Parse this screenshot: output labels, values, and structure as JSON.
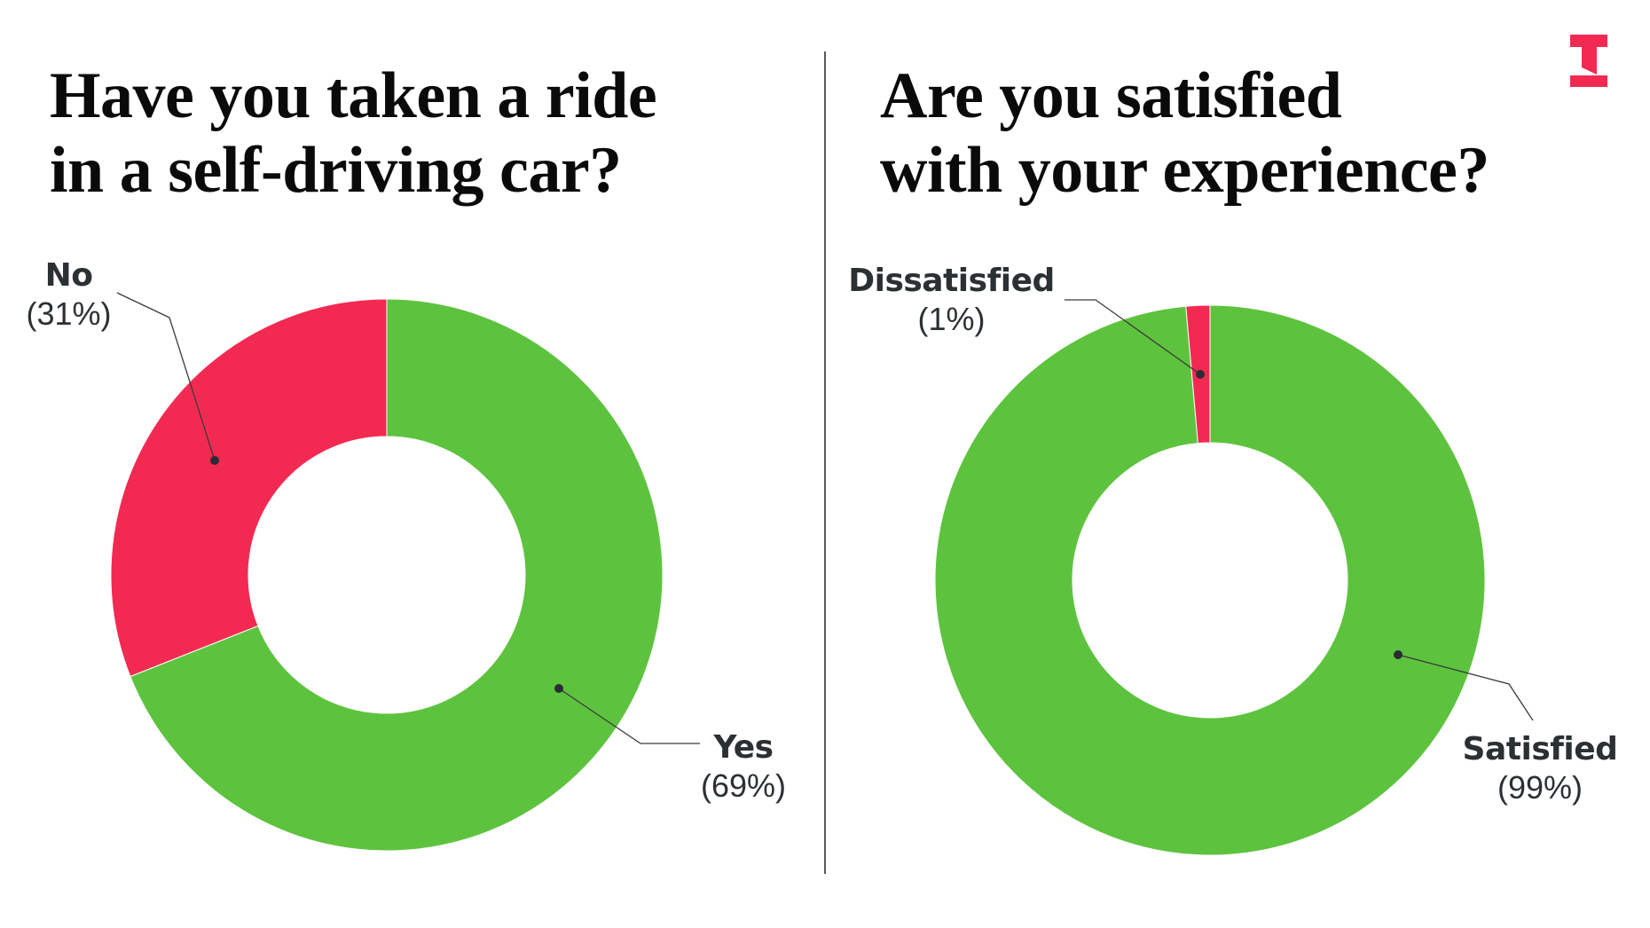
{
  "colors": {
    "green": "#5dc33e",
    "red": "#f22a52",
    "label_text": "#2b3033",
    "leader": "#333333",
    "divider": "#5a5a5a",
    "logo": "#f22a52"
  },
  "left": {
    "title_lines": [
      "Have you taken a ride",
      "in a self-driving car?"
    ],
    "labels": [
      {
        "name": "No",
        "pct": "(31%)"
      },
      {
        "name": "Yes",
        "pct": "(69%)"
      }
    ]
  },
  "right": {
    "title_lines": [
      "Are you satisfied",
      "with your experience?"
    ],
    "labels": [
      {
        "name": "Dissatisfied",
        "pct": "(1%)"
      },
      {
        "name": "Satisfied",
        "pct": "(99%)"
      }
    ]
  },
  "chart_data": [
    {
      "type": "pie",
      "subtype": "donut",
      "title": "Have you taken a ride in a self-driving car?",
      "categories": [
        "Yes",
        "No"
      ],
      "values": [
        69,
        31
      ],
      "unit": "%",
      "colors": [
        "#5dc33e",
        "#f22a52"
      ],
      "legend": "none (direct labels with leader lines)"
    },
    {
      "type": "pie",
      "subtype": "donut",
      "title": "Are you satisfied with your experience?",
      "categories": [
        "Satisfied",
        "Dissatisfied"
      ],
      "values": [
        99,
        1
      ],
      "unit": "%",
      "colors": [
        "#5dc33e",
        "#f22a52"
      ],
      "legend": "none (direct labels with leader lines)"
    }
  ]
}
